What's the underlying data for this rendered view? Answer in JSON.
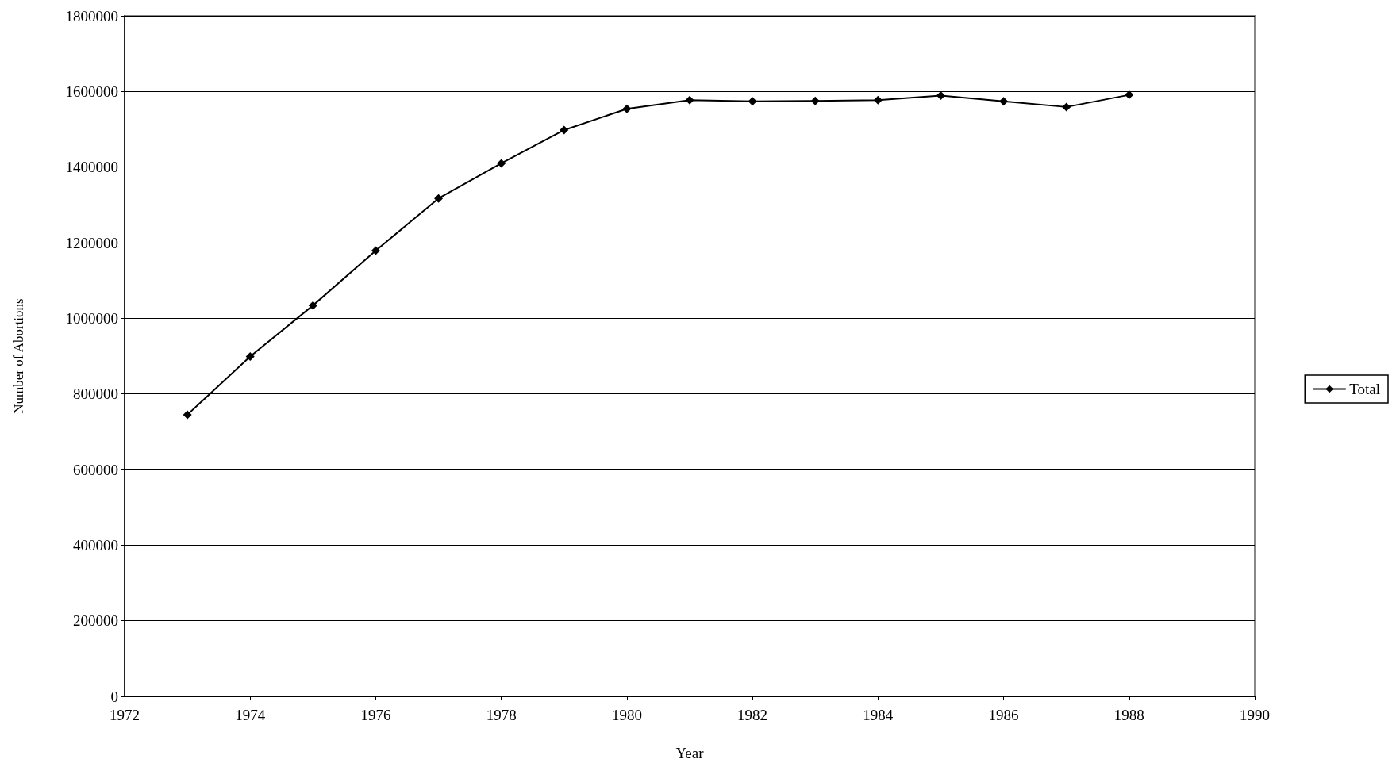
{
  "chart_data": {
    "type": "line",
    "xlabel": "Year",
    "ylabel": "Number of Abortions",
    "x": [
      1973,
      1974,
      1975,
      1976,
      1977,
      1978,
      1979,
      1980,
      1981,
      1982,
      1983,
      1984,
      1985,
      1986,
      1987,
      1988
    ],
    "series": [
      {
        "name": "Total",
        "color": "#000000",
        "values": [
          745000,
          899000,
          1034000,
          1179000,
          1317000,
          1410000,
          1498000,
          1554000,
          1577000,
          1574000,
          1575000,
          1577000,
          1589000,
          1574000,
          1559000,
          1591000
        ]
      }
    ],
    "xlim": [
      1972,
      1990
    ],
    "xticks": [
      1972,
      1974,
      1976,
      1978,
      1980,
      1982,
      1984,
      1986,
      1988,
      1990
    ],
    "ylim": [
      0,
      1800000
    ],
    "yticks": [
      0,
      200000,
      400000,
      600000,
      800000,
      1000000,
      1200000,
      1400000,
      1600000,
      1800000
    ],
    "grid": "y",
    "legend": "right",
    "marker": "diamond",
    "line_style": "solid"
  }
}
